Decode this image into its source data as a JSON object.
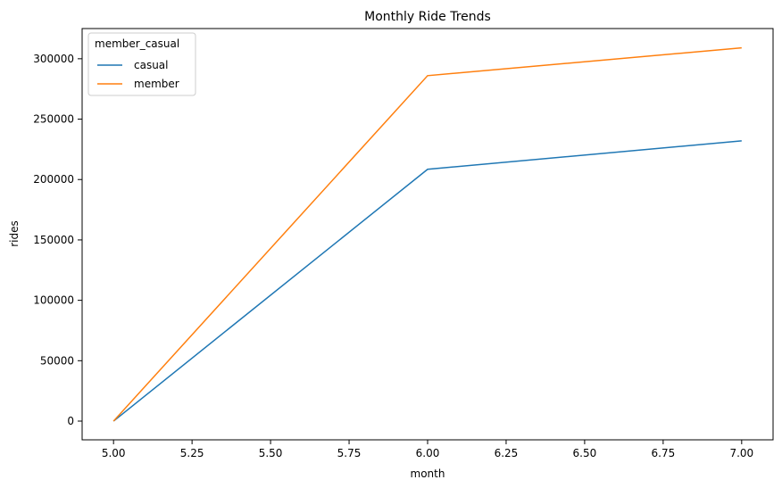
{
  "chart_data": {
    "type": "line",
    "title": "Monthly Ride Trends",
    "xlabel": "month",
    "ylabel": "rides",
    "x": [
      5.0,
      6.0,
      7.0
    ],
    "xlim": [
      4.9,
      7.1
    ],
    "ylim": [
      -15500,
      325000
    ],
    "xticks": [
      "5.00",
      "5.25",
      "5.50",
      "5.75",
      "6.00",
      "6.25",
      "6.50",
      "6.75",
      "7.00"
    ],
    "yticks": [
      "0",
      "50000",
      "100000",
      "150000",
      "200000",
      "250000",
      "300000"
    ],
    "grid": false,
    "legend": {
      "title": "member_casual",
      "placement": "top-left"
    },
    "series": [
      {
        "name": "casual",
        "color": "#1f77b4",
        "values": [
          0,
          208500,
          232000
        ]
      },
      {
        "name": "member",
        "color": "#ff7f0e",
        "values": [
          0,
          286000,
          309000
        ]
      }
    ]
  }
}
